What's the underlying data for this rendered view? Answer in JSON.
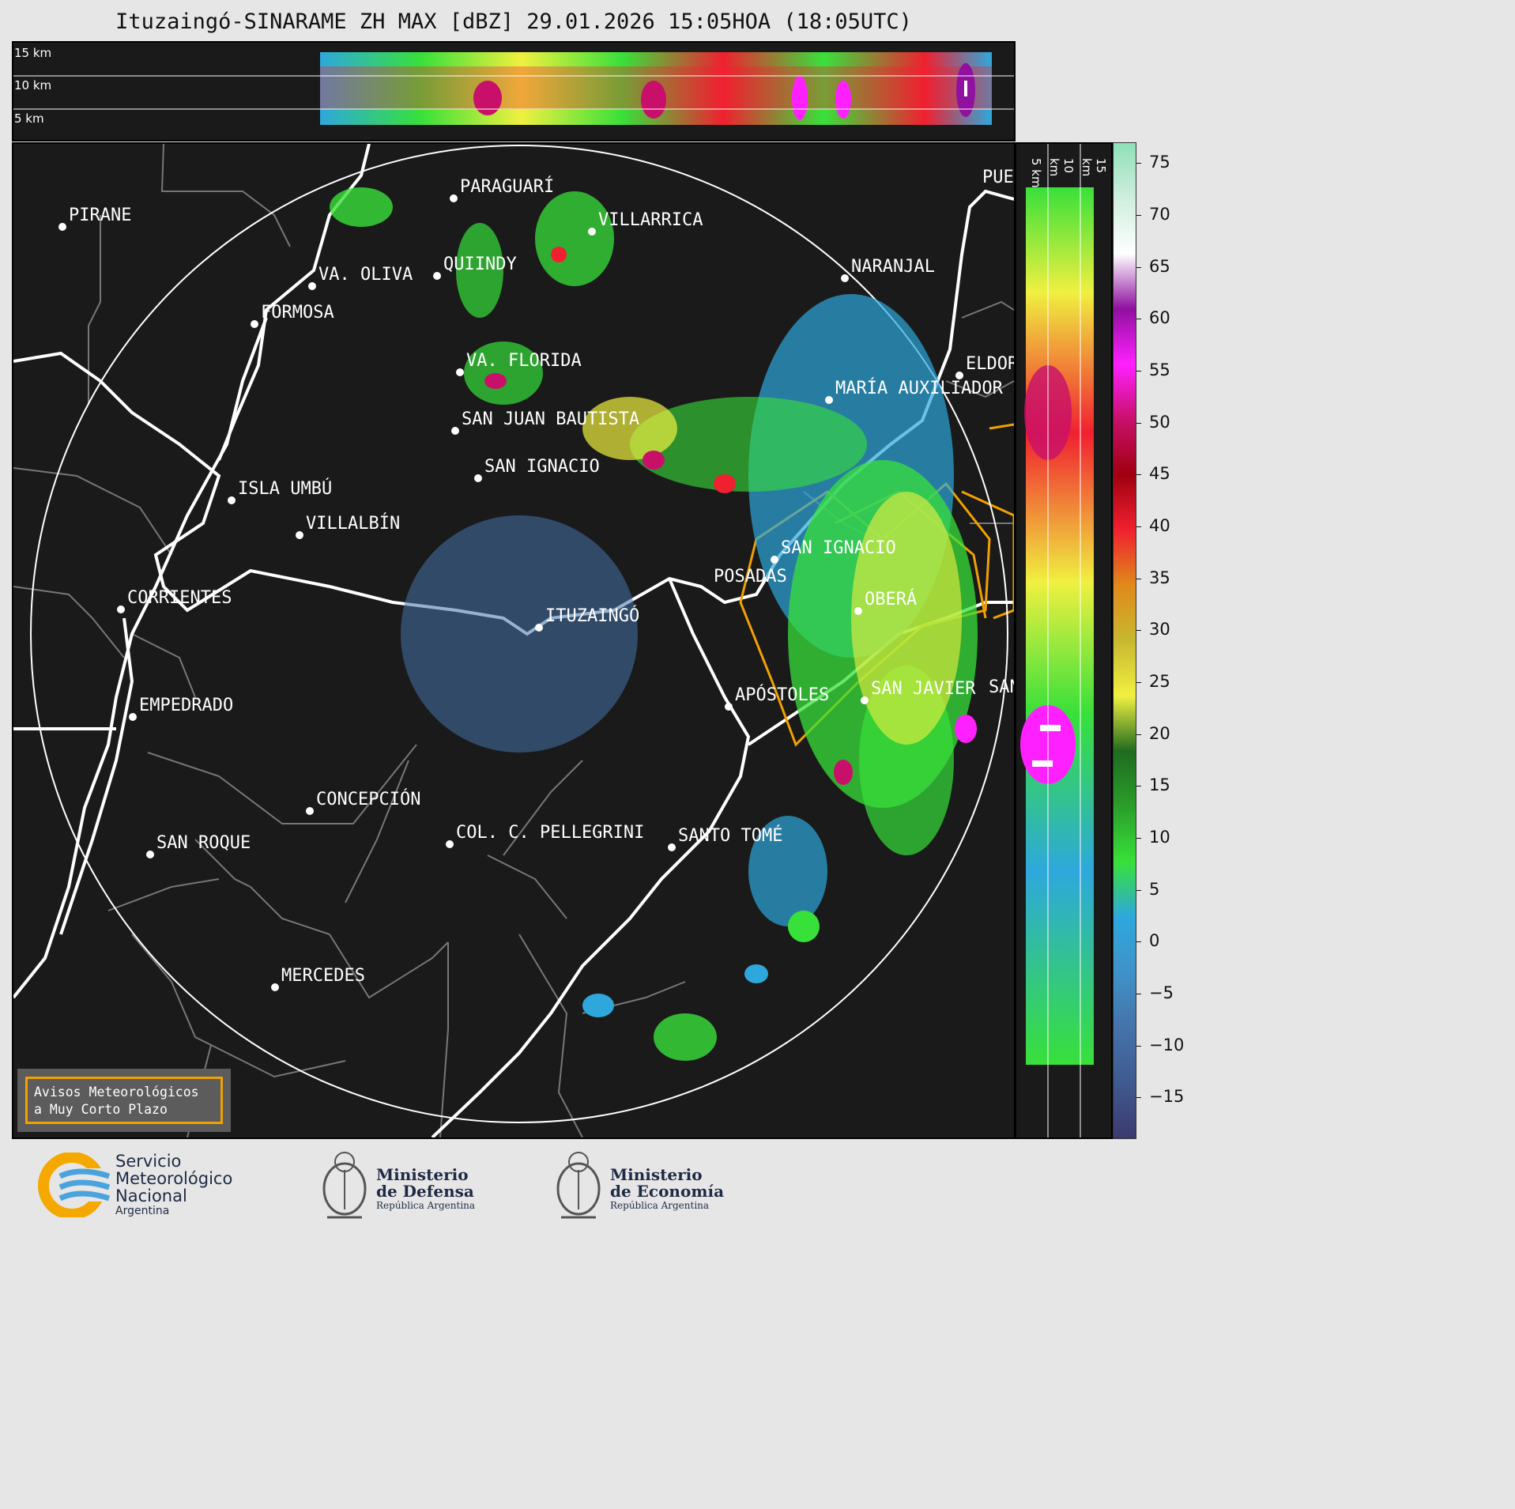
{
  "title": "Ituzaingó-SINARAME ZH MAX [dBZ] 29.01.2026 15:05HOA (18:05UTC)",
  "top_panel": {
    "levels": [
      "15 km",
      "10 km",
      "5 km"
    ]
  },
  "side_panel": {
    "levels": [
      "5 km",
      "10 km",
      "15 km"
    ]
  },
  "cities": [
    {
      "name": "PIRANE"
    },
    {
      "name": "PARAGUARÍ"
    },
    {
      "name": "VILLARRICA"
    },
    {
      "name": "VA. OLIVA"
    },
    {
      "name": "QUIINDY"
    },
    {
      "name": "NARANJAL"
    },
    {
      "name": "FORMOSA"
    },
    {
      "name": "PUER"
    },
    {
      "name": "ELDOR"
    },
    {
      "name": "VA. FLORIDA"
    },
    {
      "name": "MARÍA AUXILIADOR"
    },
    {
      "name": "SAN JUAN BAUTISTA"
    },
    {
      "name": "SAN IGNACIO"
    },
    {
      "name": "ISLA UMBÚ"
    },
    {
      "name": "VILLALBÍN"
    },
    {
      "name": "SAN IGNACIO"
    },
    {
      "name": "POSADAS"
    },
    {
      "name": "CORRIENTES"
    },
    {
      "name": "ITUZAINGÓ"
    },
    {
      "name": "OBERÁ"
    },
    {
      "name": "EMPEDRADO"
    },
    {
      "name": "APÓSTOLES"
    },
    {
      "name": "SAN JAVIER"
    },
    {
      "name": "SAN"
    },
    {
      "name": "CONCEPCIÓN"
    },
    {
      "name": "COL. C. PELLEGRINI"
    },
    {
      "name": "SANTO TOMÉ"
    },
    {
      "name": "SAN ROQUE"
    },
    {
      "name": "MERCEDES"
    }
  ],
  "colorbar": {
    "ticks": [
      "75",
      "70",
      "65",
      "60",
      "55",
      "50",
      "45",
      "40",
      "35",
      "30",
      "25",
      "20",
      "15",
      "10",
      "5",
      "0",
      "−5",
      "−10",
      "−15"
    ],
    "min": -19,
    "max": 77,
    "stops": [
      "#3b3a6e",
      "#3f5a90",
      "#4573aa",
      "#3f92c8",
      "#2ea8dc",
      "#38e03a",
      "#2a9e2a",
      "#1f6b1f",
      "#f0f040",
      "#c8b830",
      "#e08a1a",
      "#f02030",
      "#a00010",
      "#c8106a",
      "#ff20ff",
      "#9010a0",
      "#ffffff",
      "#cfeede",
      "#8fe0b8"
    ]
  },
  "alert_box": {
    "line1": "Avisos Meteorológicos",
    "line2": "a Muy Corto Plazo"
  },
  "footer": {
    "smn": {
      "line1": "Servicio",
      "line2": "Meteorológico",
      "line3": "Nacional",
      "line4": "Argentina"
    },
    "defensa": {
      "line1": "Ministerio",
      "line2": "de Defensa",
      "line3": "República Argentina"
    },
    "economia": {
      "line1": "Ministerio",
      "line2": "de Economía",
      "line3": "República Argentina"
    }
  }
}
